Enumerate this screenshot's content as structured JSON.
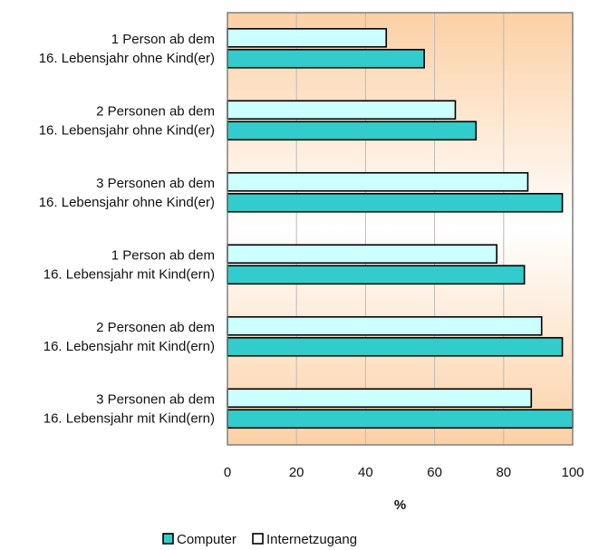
{
  "chart_data": {
    "type": "bar",
    "orientation": "horizontal",
    "title": "",
    "xlabel": "%",
    "ylabel": "",
    "xlim": [
      0,
      100
    ],
    "x_ticks": [
      "0",
      "20",
      "40",
      "60",
      "80",
      "100"
    ],
    "grid": "vertical",
    "legend_position": "bottom",
    "categories": [
      [
        "1 Person ab dem",
        "16. Lebensjahr ohne Kind(er)"
      ],
      [
        "2 Personen ab dem",
        "16. Lebensjahr ohne Kind(er)"
      ],
      [
        "3 Personen ab dem",
        "16. Lebensjahr ohne Kind(er)"
      ],
      [
        "1 Person ab dem",
        "16. Lebensjahr mit Kind(ern)"
      ],
      [
        "2 Personen ab dem",
        "16. Lebensjahr mit Kind(ern)"
      ],
      [
        "3 Personen ab dem",
        "16. Lebensjahr mit Kind(ern)"
      ]
    ],
    "series": [
      {
        "name": "Internetzugang",
        "color": "#ccffff",
        "values": [
          46,
          66,
          87,
          78,
          91,
          88
        ]
      },
      {
        "name": "Computer",
        "color": "#33cccc",
        "values": [
          57,
          72,
          97,
          86,
          97,
          100
        ]
      }
    ],
    "legend": [
      {
        "name": "Computer",
        "color": "#33cccc"
      },
      {
        "name": "Internetzugang",
        "color": "#ffffff"
      }
    ],
    "colors": {
      "plot_bg_top": "#fcd0a4",
      "plot_bg_mid": "#ffffff",
      "gridline": "#bbbbbb",
      "bar_stroke": "#000000"
    }
  }
}
